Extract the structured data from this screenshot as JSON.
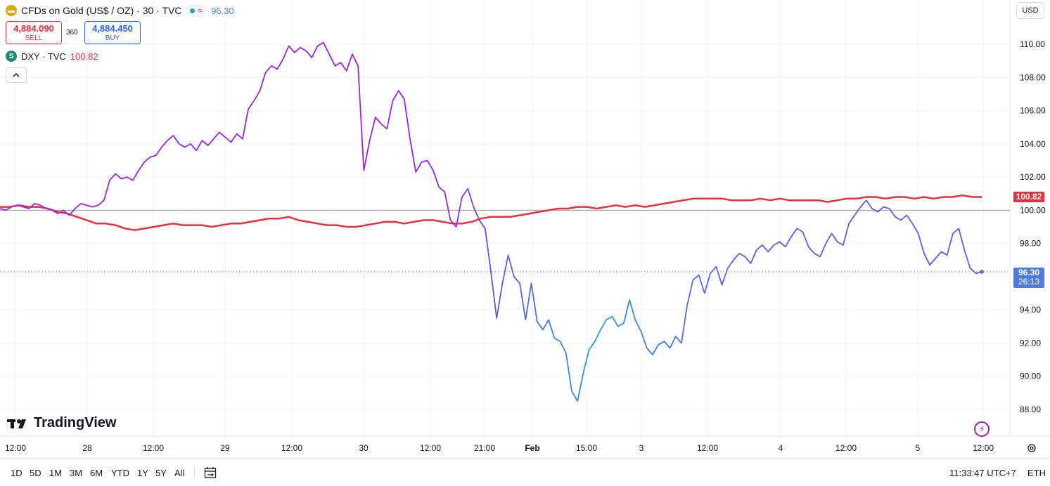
{
  "header": {
    "symbol_title": "CFDs on Gold (US$ / OZ) · 30 · TVC",
    "status_value": "96.30",
    "sell": {
      "price": "4,884.090",
      "label": "SELL"
    },
    "spread": "360",
    "buy": {
      "price": "4,884.450",
      "label": "BUY"
    },
    "compare_symbol": "DXY · TVC",
    "compare_value": "100.82",
    "compare_icon_letter": "S",
    "currency": "USD"
  },
  "icons": {
    "gold": "gold-bars-icon",
    "dxy": "dollar-icon",
    "collapse": "chevron-up-icon",
    "flash": "lightning-icon",
    "settings": "gear-icon",
    "calendar": "calendar-range-icon"
  },
  "colors": {
    "gold_line_start": "#9b27d8",
    "gold_line_mid": "#5f5fdc",
    "gold_line_end": "#2e9ad8",
    "dxy_line": "#e5303f",
    "last_price_tag": "#4f7cdc",
    "dxy_tag": "#e5303f",
    "grid": "#f0f3fa"
  },
  "price_tags": {
    "dxy_tag": "100.82",
    "gold_tag": "96.30",
    "countdown": "26:13"
  },
  "chart_data": {
    "type": "line",
    "y_ticks": [
      "110.00",
      "108.00",
      "106.00",
      "104.00",
      "102.00",
      "100.00",
      "98.00",
      "96.00",
      "94.00",
      "92.00",
      "90.00",
      "88.00"
    ],
    "ylim": [
      87.0,
      111.5
    ],
    "x_ticks": [
      "12:00",
      "28",
      "12:00",
      "29",
      "12:00",
      "30",
      "12:00",
      "21:00",
      "Feb",
      "15:00",
      "3",
      "12:00",
      "4",
      "12:00",
      "5",
      "12:00"
    ],
    "reference_level": 100.0,
    "series": [
      {
        "name": "CFDs on Gold (US$ / OZ)",
        "last_value": 96.3,
        "values": [
          100.1,
          100.0,
          100.2,
          100.3,
          100.2,
          100.1,
          100.4,
          100.3,
          100.1,
          100.0,
          99.8,
          100.0,
          99.7,
          100.1,
          100.4,
          100.3,
          100.2,
          100.3,
          100.6,
          101.8,
          102.2,
          101.9,
          102.0,
          101.8,
          102.4,
          102.9,
          103.2,
          103.3,
          103.8,
          104.2,
          104.5,
          104.0,
          103.8,
          104.0,
          103.6,
          104.2,
          103.9,
          104.3,
          104.7,
          104.4,
          104.1,
          104.6,
          104.3,
          106.1,
          106.6,
          107.2,
          108.3,
          108.7,
          108.5,
          109.1,
          109.9,
          109.5,
          109.8,
          109.6,
          109.2,
          109.9,
          110.1,
          109.4,
          108.7,
          108.9,
          108.4,
          109.4,
          108.7,
          102.4,
          104.2,
          105.6,
          105.2,
          104.9,
          106.6,
          107.2,
          106.7,
          104.3,
          102.3,
          102.9,
          103.0,
          102.4,
          101.4,
          101.1,
          99.4,
          99.0,
          100.8,
          101.3,
          100.2,
          99.4,
          98.9,
          96.3,
          93.5,
          95.6,
          97.3,
          96.0,
          95.6,
          93.4,
          95.6,
          93.3,
          92.8,
          93.4,
          92.3,
          92.1,
          91.4,
          89.1,
          88.5,
          90.2,
          91.6,
          92.1,
          92.8,
          93.4,
          93.6,
          93.0,
          93.2,
          94.6,
          93.4,
          92.7,
          91.7,
          91.3,
          91.9,
          92.1,
          91.7,
          92.4,
          92.0,
          94.3,
          95.8,
          96.1,
          95.0,
          96.2,
          96.6,
          95.5,
          96.5,
          97.0,
          97.4,
          97.2,
          96.8,
          97.6,
          97.9,
          97.5,
          97.9,
          98.1,
          97.8,
          98.4,
          98.9,
          98.7,
          97.8,
          97.4,
          97.2,
          98.0,
          98.6,
          98.1,
          97.9,
          99.2,
          99.7,
          100.2,
          100.6,
          100.1,
          99.9,
          100.2,
          100.1,
          99.6,
          99.4,
          99.7,
          99.2,
          98.6,
          97.4,
          96.7,
          97.1,
          97.5,
          97.3,
          98.6,
          98.9,
          97.6,
          96.5,
          96.2,
          96.3
        ]
      },
      {
        "name": "DXY · TVC",
        "last_value": 100.82,
        "values": [
          100.2,
          100.2,
          100.3,
          100.2,
          100.2,
          100.1,
          99.9,
          99.8,
          99.6,
          99.4,
          99.2,
          99.2,
          99.1,
          98.9,
          98.8,
          98.9,
          99.0,
          99.1,
          99.2,
          99.1,
          99.1,
          99.1,
          99.0,
          99.1,
          99.2,
          99.2,
          99.3,
          99.4,
          99.5,
          99.5,
          99.6,
          99.4,
          99.3,
          99.2,
          99.1,
          99.1,
          99.0,
          99.0,
          99.1,
          99.2,
          99.3,
          99.3,
          99.2,
          99.3,
          99.4,
          99.4,
          99.3,
          99.2,
          99.2,
          99.3,
          99.5,
          99.6,
          99.6,
          99.6,
          99.7,
          99.8,
          99.9,
          100.0,
          100.1,
          100.1,
          100.2,
          100.2,
          100.1,
          100.2,
          100.3,
          100.2,
          100.3,
          100.2,
          100.3,
          100.4,
          100.5,
          100.6,
          100.7,
          100.7,
          100.7,
          100.7,
          100.6,
          100.6,
          100.6,
          100.7,
          100.6,
          100.7,
          100.6,
          100.6,
          100.6,
          100.6,
          100.5,
          100.6,
          100.7,
          100.7,
          100.8,
          100.8,
          100.7,
          100.8,
          100.8,
          100.7,
          100.8,
          100.7,
          100.8,
          100.8,
          100.9,
          100.8,
          100.8
        ]
      }
    ]
  },
  "bottom": {
    "ranges": [
      "1D",
      "5D",
      "1M",
      "3M",
      "6M",
      "YTD",
      "1Y",
      "5Y",
      "All"
    ],
    "time": "11:33:47 UTC+7",
    "session": "ETH"
  },
  "brand": "TradingView"
}
